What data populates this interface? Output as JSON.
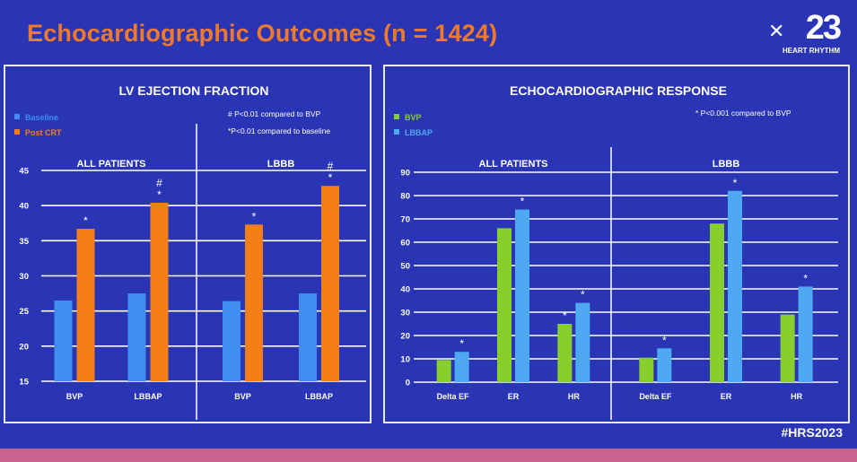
{
  "slide": {
    "title": "Echocardiographic Outcomes (n = 1424)",
    "logo_year": "23",
    "logo_text": "HEART RHYTHM",
    "hashtag": "#HRS2023"
  },
  "colors": {
    "background": "#2a35b6",
    "title": "#f07a2a",
    "baseline": "#3f8ef0",
    "post_crt": "#f57f16",
    "bvp": "#86cf2c",
    "lbbap": "#4fa8f2"
  },
  "chart_data": [
    {
      "type": "bar",
      "title": "LV EJECTION FRACTION",
      "legend": [
        {
          "name": "Baseline",
          "color": "#3f8ef0"
        },
        {
          "name": "Post CRT",
          "color": "#f57f16"
        }
      ],
      "notes": [
        "# P<0.01 compared to BVP",
        "*P<0.01 compared to baseline"
      ],
      "ylim": [
        15,
        45
      ],
      "yticks": [
        "15",
        "20",
        "25",
        "30",
        "35",
        "40",
        "45"
      ],
      "groups": [
        {
          "label": "ALL PATIENTS",
          "categories": [
            "BVP",
            "LBBAP"
          ],
          "series": [
            {
              "name": "Baseline",
              "values": [
                26.5,
                27.5
              ]
            },
            {
              "name": "Post CRT",
              "values": [
                36.7,
                40.4
              ]
            }
          ],
          "annotations": [
            [
              "",
              "*"
            ],
            [
              "",
              "#\n*"
            ]
          ]
        },
        {
          "label": "LBBB",
          "categories": [
            "BVP",
            "LBBAP"
          ],
          "series": [
            {
              "name": "Baseline",
              "values": [
                26.4,
                27.5
              ]
            },
            {
              "name": "Post CRT",
              "values": [
                37.3,
                42.8
              ]
            }
          ],
          "annotations": [
            [
              "",
              "*"
            ],
            [
              "",
              "#\n*"
            ]
          ]
        }
      ]
    },
    {
      "type": "bar",
      "title": "ECHOCARDIOGRAPHIC RESPONSE",
      "legend": [
        {
          "name": "BVP",
          "color": "#86cf2c"
        },
        {
          "name": "LBBAP",
          "color": "#4fa8f2"
        }
      ],
      "notes": [
        "* P<0.001 compared to BVP"
      ],
      "ylim": [
        0,
        90
      ],
      "yticks": [
        "0",
        "10",
        "20",
        "30",
        "40",
        "50",
        "60",
        "70",
        "80",
        "90"
      ],
      "groups": [
        {
          "label": "ALL PATIENTS",
          "categories": [
            "Delta EF",
            "ER",
            "HR"
          ],
          "series": [
            {
              "name": "BVP",
              "values": [
                9.5,
                66,
                25
              ]
            },
            {
              "name": "LBBAP",
              "values": [
                13,
                74,
                34
              ]
            }
          ],
          "annotations": [
            [
              "",
              "*"
            ],
            [
              "",
              "*"
            ],
            [
              "*",
              "*"
            ]
          ]
        },
        {
          "label": "LBBB",
          "categories": [
            "Delta EF",
            "ER",
            "HR"
          ],
          "series": [
            {
              "name": "BVP",
              "values": [
                10.5,
                68,
                29
              ]
            },
            {
              "name": "LBBAP",
              "values": [
                14.5,
                82,
                41
              ]
            }
          ],
          "annotations": [
            [
              "",
              "*"
            ],
            [
              "",
              "*"
            ],
            [
              "",
              "*"
            ]
          ]
        }
      ]
    }
  ]
}
